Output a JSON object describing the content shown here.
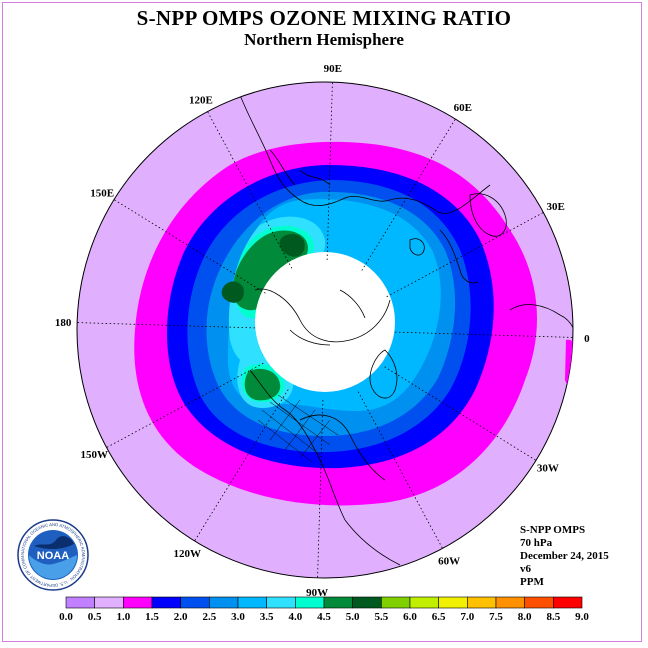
{
  "title": "S-NPP OMPS OZONE MIXING RATIO",
  "subtitle": "Northern Hemisphere",
  "longitude_labels": [
    {
      "text": "90E",
      "deg": 90
    },
    {
      "text": "60E",
      "deg": 60
    },
    {
      "text": "30E",
      "deg": 30
    },
    {
      "text": "0",
      "deg": 0
    },
    {
      "text": "30W",
      "deg": -30
    },
    {
      "text": "60W",
      "deg": -60
    },
    {
      "text": "90W",
      "deg": -90
    },
    {
      "text": "120W",
      "deg": -120
    },
    {
      "text": "150W",
      "deg": -150
    },
    {
      "text": "180",
      "deg": 180
    },
    {
      "text": "150E",
      "deg": 150
    },
    {
      "text": "120E",
      "deg": 120
    }
  ],
  "info": {
    "instrument": "S-NPP OMPS",
    "level": "70 hPa",
    "date": "December 24, 2015",
    "version": "v6",
    "units": "PPM"
  },
  "logo": {
    "text": "NOAA",
    "ring_text": "NATIONAL OCEANIC AND ATMOSPHERIC ADMINISTRATION · U.S. DEPARTMENT OF COMMERCE"
  },
  "colorbar": {
    "ticks": [
      "0.0",
      "0.5",
      "1.0",
      "1.5",
      "2.0",
      "2.5",
      "3.0",
      "3.5",
      "4.0",
      "4.5",
      "5.0",
      "5.5",
      "6.0",
      "6.5",
      "7.0",
      "7.5",
      "8.0",
      "8.5",
      "9.0"
    ],
    "colors": [
      "#c080ff",
      "#e0b0ff",
      "#ff00ff",
      "#0000ff",
      "#0050f0",
      "#0090f0",
      "#00b8ff",
      "#30e0ff",
      "#00ffd0",
      "#008a3a",
      "#005a20",
      "#80d000",
      "#c0f000",
      "#f0f000",
      "#ffc000",
      "#ff9000",
      "#ff5000",
      "#ff0000",
      "#805030"
    ]
  },
  "colors": {
    "background_disk": "#e0b0ff",
    "contour_1_0": "#ff00ff",
    "contour_1_5": "#0000ff",
    "contour_2_0": "#0050f0",
    "contour_2_5": "#0090f0",
    "contour_3_0": "#00b8ff",
    "contour_3_5": "#30e0ff",
    "contour_4_0": "#00ffd0",
    "contour_4_5": "#008a3a",
    "polar_night": "#ffffff"
  }
}
